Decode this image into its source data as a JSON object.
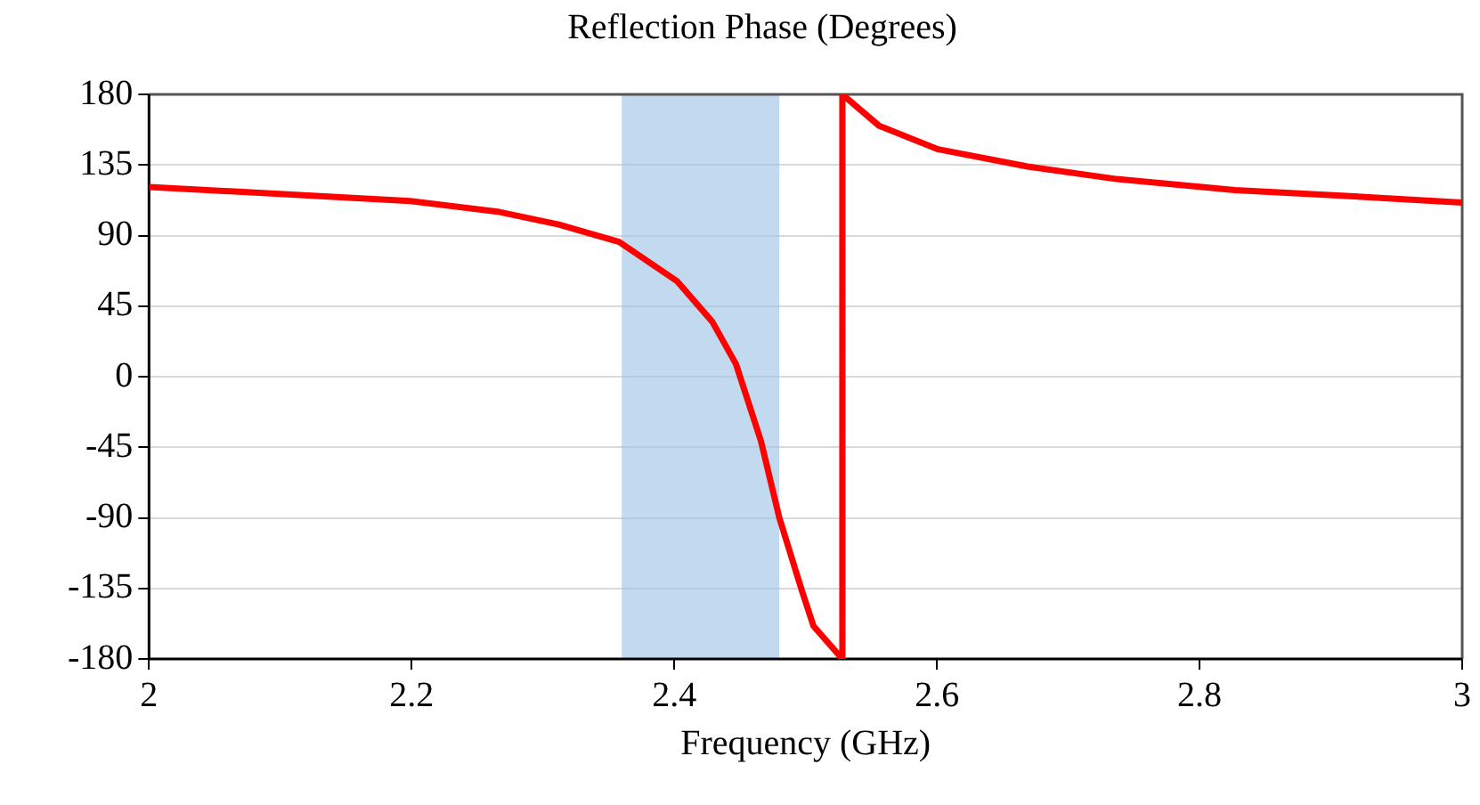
{
  "chart_data": {
    "type": "line",
    "title": "Reflection Phase (Degrees)",
    "xlabel": "Frequency (GHz)",
    "series": [
      {
        "color": "#ff0000",
        "x": [
          2.0,
          2.199,
          2.267,
          2.312,
          2.358,
          2.402,
          2.429,
          2.447,
          2.466,
          2.48,
          2.497,
          2.506,
          2.528,
          2.528,
          2.556,
          2.601,
          2.669,
          2.737,
          2.827,
          2.918,
          3.0
        ],
        "values": [
          121,
          112,
          105,
          97,
          86,
          61,
          35,
          8,
          -41,
          -90,
          -136,
          -159,
          -180,
          180,
          160,
          145,
          134,
          126,
          119,
          115,
          111
        ]
      }
    ],
    "xlim": [
      2,
      3
    ],
    "xticks": [
      2,
      2.2,
      2.4,
      2.6,
      2.8,
      3
    ],
    "ylim": [
      -180,
      180
    ],
    "yticks": [
      -180,
      -135,
      -90,
      -45,
      0,
      45,
      90,
      135,
      180
    ],
    "bands": [
      {
        "axis": "x",
        "from": 2.36,
        "to": 2.48,
        "color": "#9dc3e6"
      }
    ],
    "grid": "y",
    "legend": false,
    "marker": "none",
    "line_style": "solid"
  }
}
